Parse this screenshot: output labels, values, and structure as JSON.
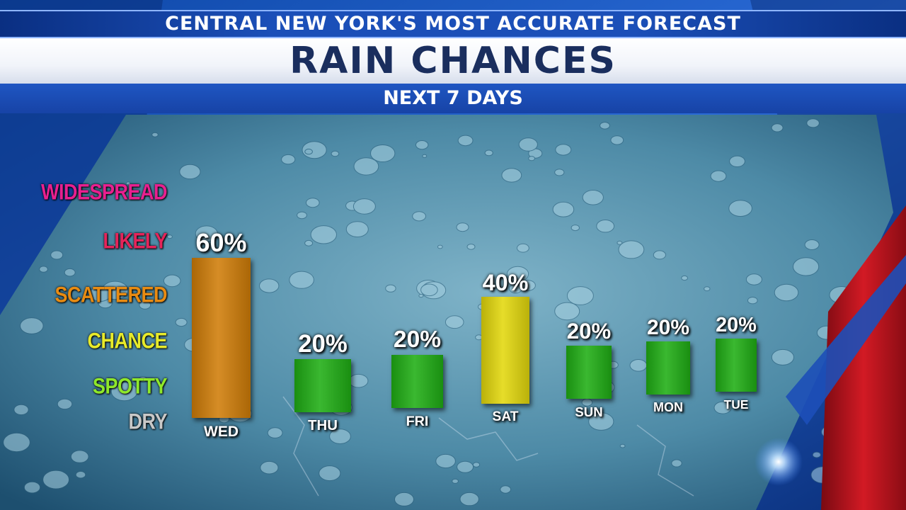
{
  "header": {
    "tagline": "CENTRAL NEW YORK'S MOST ACCURATE FORECAST",
    "title": "RAIN CHANCES",
    "subtitle": "NEXT 7 DAYS"
  },
  "levels": [
    {
      "label": "WIDESPREAD",
      "color": "#e8208f"
    },
    {
      "label": "LIKELY",
      "color": "#e5245a"
    },
    {
      "label": "SCATTERED",
      "color": "#e88b12"
    },
    {
      "label": "CHANCE",
      "color": "#e7ea2a"
    },
    {
      "label": "SPOTTY",
      "color": "#8ee82a"
    },
    {
      "label": "DRY",
      "color": "#c8c8c8"
    }
  ],
  "chart_data": {
    "type": "bar",
    "title": "RAIN CHANCES",
    "subtitle": "NEXT 7 DAYS",
    "categories": [
      "WED",
      "THU",
      "FRI",
      "SAT",
      "SUN",
      "MON",
      "TUE"
    ],
    "values": [
      60,
      20,
      20,
      40,
      20,
      20,
      20
    ],
    "value_labels": [
      "60%",
      "20%",
      "20%",
      "40%",
      "20%",
      "20%",
      "20%"
    ],
    "unit": "%",
    "bar_colors": [
      "#d07d08",
      "#1fae14",
      "#1fae14",
      "#e3d80c",
      "#1fae14",
      "#1fae14",
      "#1fae14"
    ],
    "y_categories": [
      "DRY",
      "SPOTTY",
      "CHANCE",
      "SCATTERED",
      "LIKELY",
      "WIDESPREAD"
    ],
    "ylim": [
      0,
      100
    ],
    "grid": false,
    "legend": "none"
  }
}
